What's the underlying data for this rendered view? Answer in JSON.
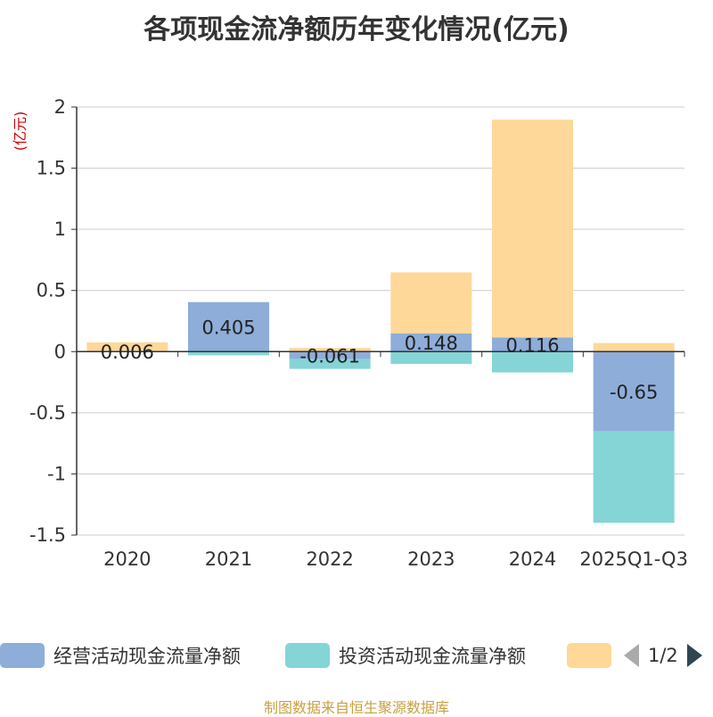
{
  "chart_data": {
    "type": "bar",
    "stacked": true,
    "title": "各项现金流净额历年变化情况(亿元)",
    "ylabel": "(亿元)",
    "categories": [
      "2020",
      "2021",
      "2022",
      "2023",
      "2024",
      "2025Q1-Q3"
    ],
    "ylim": [
      -1.5,
      2
    ],
    "yticks": [
      2,
      1.5,
      1,
      0.5,
      0,
      -0.5,
      -1,
      -1.5
    ],
    "ytick_labels": [
      "2",
      "1.5",
      "1",
      "0.5",
      "0",
      "-0.5",
      "-1",
      "-1.5"
    ],
    "grid": true,
    "series": [
      {
        "name": "经营活动现金流量净额",
        "color": "#8eadd9",
        "values": [
          0.006,
          0.405,
          -0.061,
          0.148,
          0.116,
          -0.65
        ],
        "labels": [
          "0.006",
          "0.405",
          "-0.061",
          "0.148",
          "0.116",
          "-0.65"
        ]
      },
      {
        "name": "投资活动现金流量净额",
        "color": "#85d4d6",
        "values": [
          -0.005,
          -0.03,
          -0.08,
          -0.1,
          -0.17,
          -0.75
        ]
      },
      {
        "name": "",
        "color": "#fdd899",
        "values": [
          0.07,
          0.0,
          0.03,
          0.5,
          1.78,
          0.07
        ]
      }
    ]
  },
  "legend": {
    "items": [
      {
        "label": "经营活动现金流量净额",
        "color": "#8eadd9"
      },
      {
        "label": "投资活动现金流量净额",
        "color": "#85d4d6"
      },
      {
        "label": "",
        "color": "#fdd899"
      }
    ],
    "page_indicator": "1/2"
  },
  "source_note": "制图数据来自恒生聚源数据库"
}
